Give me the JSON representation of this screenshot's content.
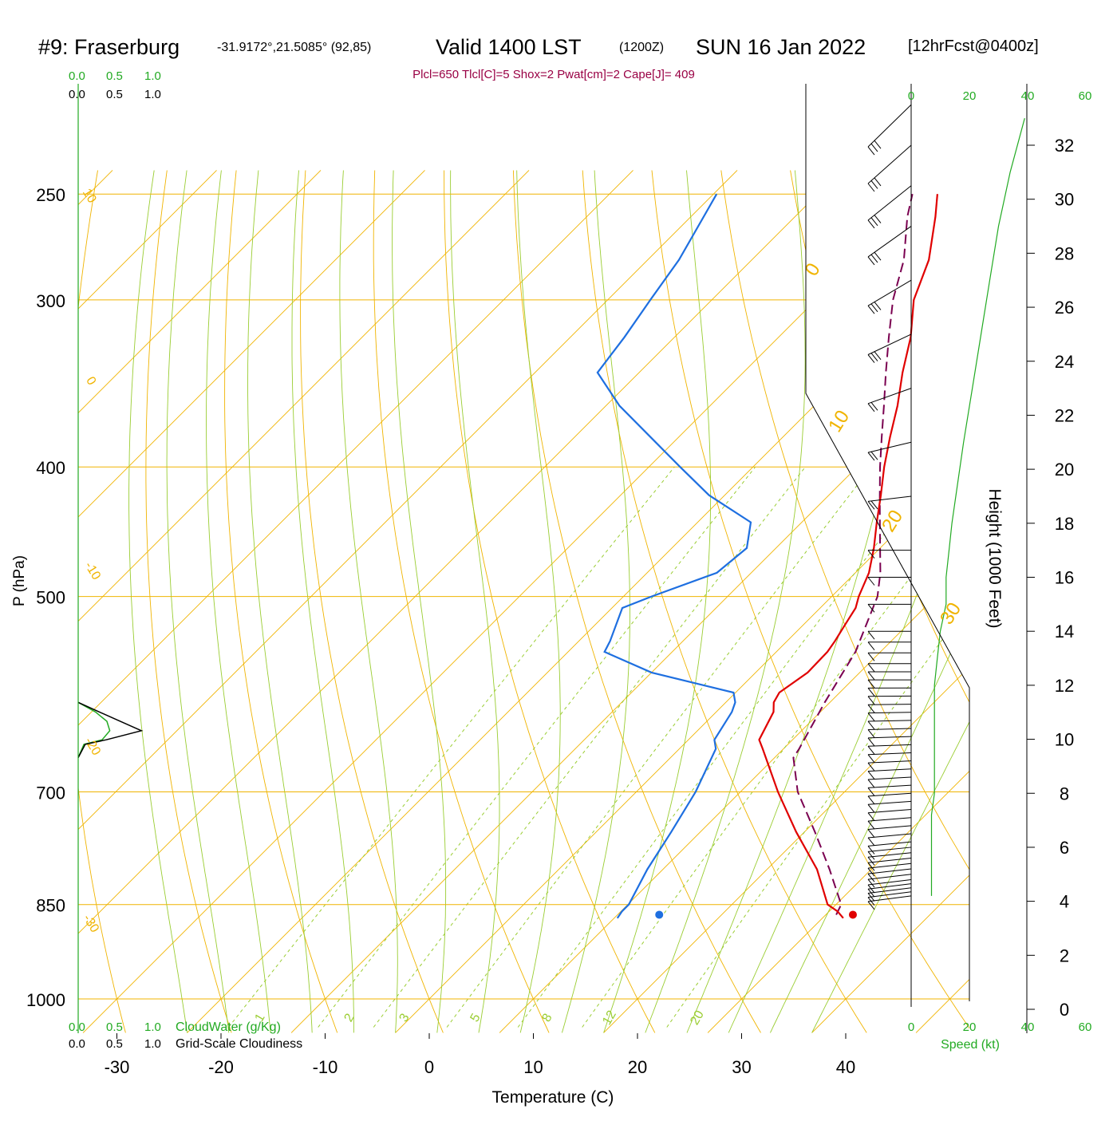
{
  "header": {
    "station": "#9: Fraserburg",
    "coords": "-31.9172°,21.5085° (92,85)",
    "valid": "Valid 1400 LST",
    "utc": "(1200Z)",
    "date": "SUN 16 Jan 2022",
    "forecast": "[12hrFcst@0400z]",
    "indices": "Plcl=650 Tlcl[C]=5 Shox=2 Pwat[cm]=2 Cape[J]= 409"
  },
  "cloud_scale": {
    "ticks": [
      "0.0",
      "0.5",
      "1.0"
    ],
    "cloudwater_label": "CloudWater (g/Kg)",
    "cloudiness_label": "Grid-Scale Cloudiness"
  },
  "speed_scale": {
    "ticks": [
      "0",
      "20",
      "40",
      "60"
    ],
    "label": "Speed (kt)"
  },
  "colors": {
    "isobar": "#f0b400",
    "isotherm": "#f0b400",
    "dry_adiabat": "#f0b400",
    "moist_adiabat": "#9acd32",
    "mixing_ratio": "#9acd32",
    "temperature": "#e00000",
    "dewpoint": "#1e6fe0",
    "parcel": "#7a0050",
    "cloudwater": "#22aa22",
    "indices_text": "#990044"
  },
  "chart_data": {
    "type": "line",
    "title": "#9: Fraserburg",
    "xlabel": "Temperature (C)",
    "ylabel": "P (hPa)",
    "y2label": "Height (1000 Feet)",
    "x_ticks": [
      "-30",
      "-20",
      "-10",
      "0",
      "10",
      "20",
      "30",
      "40"
    ],
    "y_ticks": [
      "250",
      "300",
      "400",
      "500",
      "700",
      "850",
      "1000"
    ],
    "height_ticks": [
      "0",
      "2",
      "4",
      "6",
      "8",
      "10",
      "12",
      "14",
      "16",
      "18",
      "20",
      "22",
      "24",
      "26",
      "28",
      "30",
      "32"
    ],
    "isobars_hpa": [
      250,
      300,
      400,
      500,
      700,
      850,
      1000
    ],
    "isotherm_labels": [
      "10",
      "0",
      "-10",
      "-20",
      "-30",
      "0",
      "10",
      "20",
      "30"
    ],
    "mixing_ratio_labels": [
      "1",
      "2",
      "3",
      "5",
      "8",
      "12",
      "20"
    ],
    "series": [
      {
        "name": "Temperature",
        "p": [
          870,
          860,
          850,
          800,
          750,
          700,
          650,
          640,
          610,
          600,
          590,
          570,
          550,
          540,
          525,
          510,
          500,
          480,
          460,
          440,
          420,
          400,
          380,
          360,
          340,
          320,
          300,
          280,
          260,
          250
        ],
        "t": [
          32.0,
          30.8,
          29.2,
          24.8,
          19.2,
          13.6,
          8.0,
          6.8,
          5.5,
          4.6,
          4.2,
          5.0,
          4.9,
          4.6,
          4.0,
          3.4,
          2.6,
          1.3,
          -0.6,
          -2.8,
          -5.0,
          -7.4,
          -9.7,
          -12.0,
          -14.7,
          -17.3,
          -20.6,
          -23.0,
          -26.5,
          -28.5
        ]
      },
      {
        "name": "Dewpoint",
        "p": [
          870,
          860,
          850,
          800,
          750,
          700,
          650,
          640,
          610,
          600,
          590,
          570,
          550,
          540,
          510,
          500,
          480,
          460,
          440,
          420,
          400,
          360,
          340,
          320,
          300,
          280,
          250
        ],
        "td": [
          10.3,
          10.1,
          10.1,
          8.5,
          7.2,
          5.7,
          3.5,
          2.5,
          1.5,
          0.9,
          -0.2,
          -10.0,
          -16.5,
          -17.0,
          -19.0,
          -17.3,
          -13.3,
          -12.8,
          -14.9,
          -21.5,
          -27.0,
          -38.7,
          -44.0,
          -44.8,
          -45.9,
          -47.0,
          -49.7
        ]
      },
      {
        "name": "Parcel",
        "p": [
          865,
          850,
          800,
          750,
          700,
          660,
          650,
          600,
          550,
          500,
          480,
          460,
          440,
          420,
          400,
          380,
          360,
          340,
          320,
          300,
          280,
          260,
          250
        ],
        "t": [
          31.0,
          30.5,
          26.0,
          21.0,
          15.5,
          11.8,
          11.5,
          9.5,
          7.6,
          4.4,
          2.4,
          0.0,
          -2.5,
          -5.1,
          -7.8,
          -10.5,
          -13.3,
          -16.3,
          -19.4,
          -22.6,
          -25.4,
          -29.2,
          -30.9
        ]
      }
    ],
    "surface_points": [
      {
        "name": "Surface temperature",
        "p": 865,
        "t": 32.6
      },
      {
        "name": "Surface dewpoint",
        "p": 865,
        "t": 14.0
      }
    ],
    "wind_profile": {
      "height_kft": [
        4.2,
        4.4,
        4.6,
        4.8,
        5.2,
        5.8,
        6.5,
        7.2,
        8.0,
        9.0,
        10.0,
        11.0,
        12.0,
        13.0,
        14.0,
        15.0,
        16.0,
        17.0,
        18.0,
        19.5,
        21.0,
        23.0,
        25.0,
        27.0,
        29.0,
        31.0,
        33.0
      ],
      "speed_kt": [
        7,
        7,
        7,
        7,
        7,
        7,
        7,
        7,
        8,
        8,
        8,
        8,
        8,
        9,
        10,
        12,
        12,
        13,
        14,
        16,
        18,
        21,
        24,
        27,
        30,
        34,
        39
      ]
    },
    "cloud_profile": {
      "p": [
        600,
        610,
        620,
        630,
        640,
        645,
        660
      ],
      "cloudwater_gkg": [
        0.0,
        0.18,
        0.3,
        0.33,
        0.25,
        0.06,
        0.0
      ],
      "cloudiness_frac": [
        0.0,
        0.3,
        0.6,
        0.9,
        0.4,
        0.1,
        0.0
      ]
    },
    "ylim": [
      250,
      1050
    ],
    "grid": true,
    "legend": "none"
  }
}
